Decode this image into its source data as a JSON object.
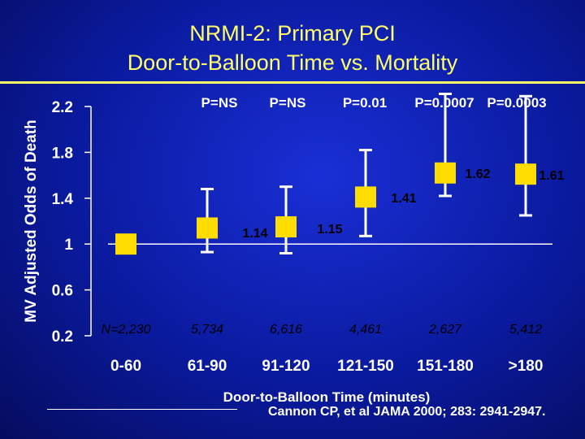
{
  "slide": {
    "title_line1": "NRMI-2:  Primary PCI",
    "title_line2": "Door-to-Balloon Time vs. Mortality",
    "citation": "Cannon CP, et al JAMA 2000; 283: 2941-2947."
  },
  "colors": {
    "marker": "#ffdd00",
    "title": "#ffff66",
    "axis": "#ffffff"
  },
  "chart_data": {
    "type": "scatter",
    "title": "",
    "xlabel": "Door-to-Balloon Time (minutes)",
    "ylabel": "MV Adjusted Odds of Death",
    "categories": [
      "0-60",
      "61-90",
      "91-120",
      "121-150",
      "151-180",
      ">180"
    ],
    "y_ticks": [
      "0.2",
      "0.6",
      "1",
      "1.4",
      "1.8",
      "2.2"
    ],
    "ylim": [
      0.2,
      2.2
    ],
    "reference_line": 1,
    "odds_ratios": [
      1.0,
      1.14,
      1.15,
      1.41,
      1.62,
      1.61
    ],
    "ci_lower": [
      1.0,
      0.93,
      0.92,
      1.07,
      1.42,
      1.25
    ],
    "ci_upper": [
      1.0,
      1.48,
      1.5,
      1.82,
      2.31,
      2.29
    ],
    "value_labels": [
      "",
      "1.14",
      "1.15",
      "1.41",
      "1.62",
      "1.61"
    ],
    "p_values": [
      "",
      "P=NS",
      "P=NS",
      "P=0.01",
      "P=0.0007",
      "P=0.0003"
    ],
    "n_labels": [
      "N=2,230",
      "5,734",
      "6,616",
      "4,461",
      "2,627",
      "5,412"
    ],
    "grid": false,
    "legend": "none"
  }
}
